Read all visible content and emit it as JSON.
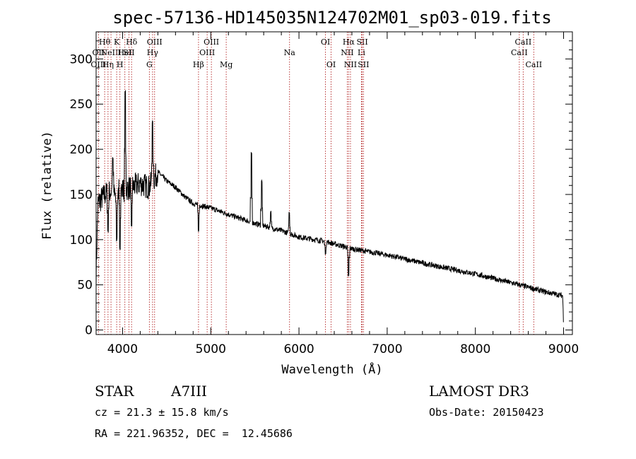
{
  "chart_data": {
    "type": "line",
    "title": "spec-57136-HD145035N124702M01_sp03-019.fits",
    "xlabel": "Wavelength (Å)",
    "ylabel": "Flux (relative)",
    "xlim": [
      3700,
      9100
    ],
    "ylim": [
      -5,
      330
    ],
    "x_ticks": [
      4000,
      5000,
      6000,
      7000,
      8000,
      9000
    ],
    "y_ticks": [
      0,
      50,
      100,
      150,
      200,
      250,
      300
    ],
    "continuum_anchors": [
      {
        "x": 3700,
        "y": 60
      },
      {
        "x": 3720,
        "y": 140
      },
      {
        "x": 3800,
        "y": 150
      },
      {
        "x": 3900,
        "y": 155
      },
      {
        "x": 4000,
        "y": 155
      },
      {
        "x": 4100,
        "y": 158
      },
      {
        "x": 4200,
        "y": 162
      },
      {
        "x": 4300,
        "y": 158
      },
      {
        "x": 4350,
        "y": 166
      },
      {
        "x": 4400,
        "y": 175
      },
      {
        "x": 4500,
        "y": 165
      },
      {
        "x": 4600,
        "y": 158
      },
      {
        "x": 4700,
        "y": 148
      },
      {
        "x": 4800,
        "y": 140
      },
      {
        "x": 5000,
        "y": 135
      },
      {
        "x": 5200,
        "y": 128
      },
      {
        "x": 5500,
        "y": 118
      },
      {
        "x": 5800,
        "y": 110
      },
      {
        "x": 6000,
        "y": 103
      },
      {
        "x": 6300,
        "y": 98
      },
      {
        "x": 6600,
        "y": 90
      },
      {
        "x": 7000,
        "y": 83
      },
      {
        "x": 7500,
        "y": 72
      },
      {
        "x": 8000,
        "y": 62
      },
      {
        "x": 8500,
        "y": 50
      },
      {
        "x": 8800,
        "y": 42
      },
      {
        "x": 8990,
        "y": 38
      },
      {
        "x": 9000,
        "y": 5
      }
    ],
    "features": [
      {
        "x": 3835,
        "y": 110,
        "type": "absorption"
      },
      {
        "x": 3889,
        "y": 190,
        "type": "peak"
      },
      {
        "x": 3933,
        "y": 100,
        "type": "absorption"
      },
      {
        "x": 3970,
        "y": 90,
        "type": "absorption"
      },
      {
        "x": 4030,
        "y": 265,
        "type": "peak"
      },
      {
        "x": 4102,
        "y": 115,
        "type": "absorption"
      },
      {
        "x": 4340,
        "y": 230,
        "type": "peak"
      },
      {
        "x": 4861,
        "y": 110,
        "type": "absorption"
      },
      {
        "x": 5460,
        "y": 195,
        "type": "peak"
      },
      {
        "x": 5577,
        "y": 165,
        "type": "peak"
      },
      {
        "x": 5680,
        "y": 130,
        "type": "peak"
      },
      {
        "x": 5890,
        "y": 130,
        "type": "peak"
      },
      {
        "x": 6300,
        "y": 85,
        "type": "absorption"
      },
      {
        "x": 6563,
        "y": 60,
        "type": "absorption"
      }
    ],
    "line_markers": [
      {
        "x": 3727,
        "labels": [
          {
            "text": "OII",
            "row": 2
          },
          {
            "text": "OIII",
            "row": 3
          }
        ]
      },
      {
        "x": 3797,
        "labels": [
          {
            "text": "Hθ",
            "row": 1
          }
        ]
      },
      {
        "x": 3835,
        "labels": [
          {
            "text": "Hη",
            "row": 3
          }
        ]
      },
      {
        "x": 3869,
        "labels": [
          {
            "text": "NeIII",
            "row": 2
          }
        ]
      },
      {
        "x": 3933,
        "labels": [
          {
            "text": "K",
            "row": 1
          }
        ]
      },
      {
        "x": 3970,
        "labels": [
          {
            "text": "H",
            "row": 3
          }
        ]
      },
      {
        "x": 4026,
        "labels": [
          {
            "text": "HeI",
            "row": 2
          }
        ]
      },
      {
        "x": 4072,
        "labels": [
          {
            "text": "SII",
            "row": 2
          }
        ]
      },
      {
        "x": 4102,
        "labels": [
          {
            "text": "Hδ",
            "row": 1
          }
        ]
      },
      {
        "x": 4304,
        "labels": [
          {
            "text": "G",
            "row": 3
          }
        ]
      },
      {
        "x": 4340,
        "labels": [
          {
            "text": "Hγ",
            "row": 2
          }
        ]
      },
      {
        "x": 4363,
        "labels": [
          {
            "text": "OIII",
            "row": 1
          }
        ]
      },
      {
        "x": 4861,
        "labels": [
          {
            "text": "Hβ",
            "row": 3
          }
        ]
      },
      {
        "x": 4959,
        "labels": [
          {
            "text": "OIII",
            "row": 2
          }
        ]
      },
      {
        "x": 5007,
        "labels": [
          {
            "text": "OIII",
            "row": 1
          }
        ]
      },
      {
        "x": 5175,
        "labels": [
          {
            "text": "Mg",
            "row": 3
          }
        ]
      },
      {
        "x": 5893,
        "labels": [
          {
            "text": "Na",
            "row": 2
          }
        ]
      },
      {
        "x": 6300,
        "labels": [
          {
            "text": "OI",
            "row": 1
          }
        ]
      },
      {
        "x": 6364,
        "labels": [
          {
            "text": "OI",
            "row": 3
          }
        ]
      },
      {
        "x": 6548,
        "labels": [
          {
            "text": "NII",
            "row": 2
          }
        ]
      },
      {
        "x": 6563,
        "labels": [
          {
            "text": "Hα",
            "row": 1
          }
        ]
      },
      {
        "x": 6584,
        "labels": [
          {
            "text": "NII",
            "row": 3
          }
        ]
      },
      {
        "x": 6708,
        "labels": [
          {
            "text": "Li",
            "row": 2
          }
        ]
      },
      {
        "x": 6717,
        "labels": [
          {
            "text": "SII",
            "row": 1
          }
        ]
      },
      {
        "x": 6731,
        "labels": [
          {
            "text": "SII",
            "row": 3
          }
        ]
      },
      {
        "x": 8498,
        "labels": [
          {
            "text": "CaII",
            "row": 2
          }
        ]
      },
      {
        "x": 8542,
        "labels": [
          {
            "text": "CaII",
            "row": 1
          }
        ]
      },
      {
        "x": 8662,
        "labels": [
          {
            "text": "CaII",
            "row": 3
          }
        ]
      }
    ]
  },
  "info": {
    "object_type": "STAR",
    "spectral_class": "A7III",
    "survey": "LAMOST DR3",
    "redshift": "cz = 21.3 ± 15.8 km/s",
    "obs_date": "Obs-Date: 20150423",
    "coords": "RA = 221.96352, DEC =  12.45686"
  }
}
